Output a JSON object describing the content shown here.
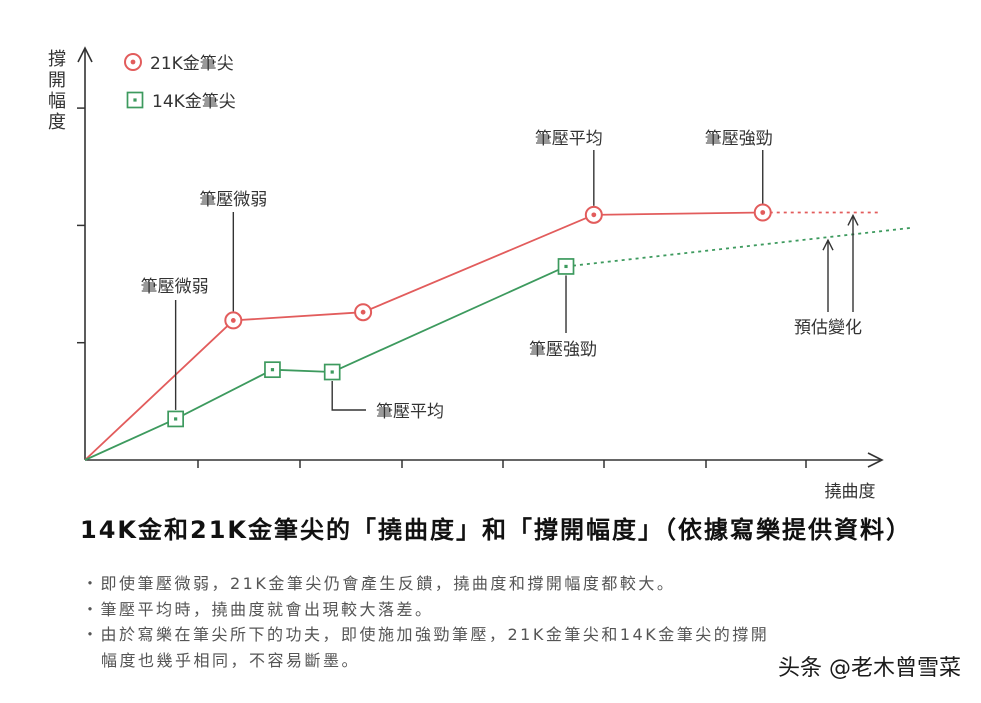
{
  "chart_data": {
    "type": "line",
    "title": "14K金和21K金筆尖的「撓曲度」和「撐開幅度」（依據寫樂提供資料）",
    "xlabel": "撓曲度",
    "ylabel": "撐開幅度",
    "xlim": [
      0,
      7.7
    ],
    "ylim": [
      0,
      3.5
    ],
    "grid": false,
    "legend": "top-left",
    "series": [
      {
        "name": "21K金筆尖",
        "color": "#e25c5c",
        "marker": "circle-dot",
        "x": [
          0,
          1.44,
          2.7,
          4.94,
          6.58
        ],
        "y": [
          0,
          1.19,
          1.26,
          2.09,
          2.11
        ],
        "projected": {
          "x": [
            6.58,
            7.72
          ],
          "y": [
            2.11,
            2.11
          ]
        }
      },
      {
        "name": "14K金筆尖",
        "color": "#3d9a5e",
        "marker": "square-dot",
        "x": [
          0,
          0.88,
          1.82,
          2.4,
          4.67
        ],
        "y": [
          0,
          0.35,
          0.77,
          0.75,
          1.65
        ],
        "projected": {
          "x": [
            4.67,
            8.03
          ],
          "y": [
            1.65,
            1.98
          ]
        }
      }
    ],
    "annotations": [
      {
        "text": "筆壓微弱",
        "series": 0,
        "point": 1
      },
      {
        "text": "筆壓微弱",
        "series": 1,
        "point": 1
      },
      {
        "text": "筆壓平均",
        "series": 0,
        "point": 3
      },
      {
        "text": "筆壓強勁",
        "series": 0,
        "point": 4
      },
      {
        "text": "筆壓強勁",
        "series": 1,
        "point": 4
      },
      {
        "text": "筆壓平均",
        "series": 1,
        "point": 3
      }
    ],
    "projection_label": "預估變化"
  },
  "notes": [
    "・即使筆壓微弱，21K金筆尖仍會產生反饋，撓曲度和撐開幅度都較大。",
    "・筆壓平均時，撓曲度就會出現較大落差。",
    "・由於寫樂在筆尖所下的功夫，即使施加強勁筆壓，21K金筆尖和14K金筆尖的撐開",
    "幅度也幾乎相同，不容易斷墨。"
  ],
  "watermark": "头条 @老木曾雪菜"
}
